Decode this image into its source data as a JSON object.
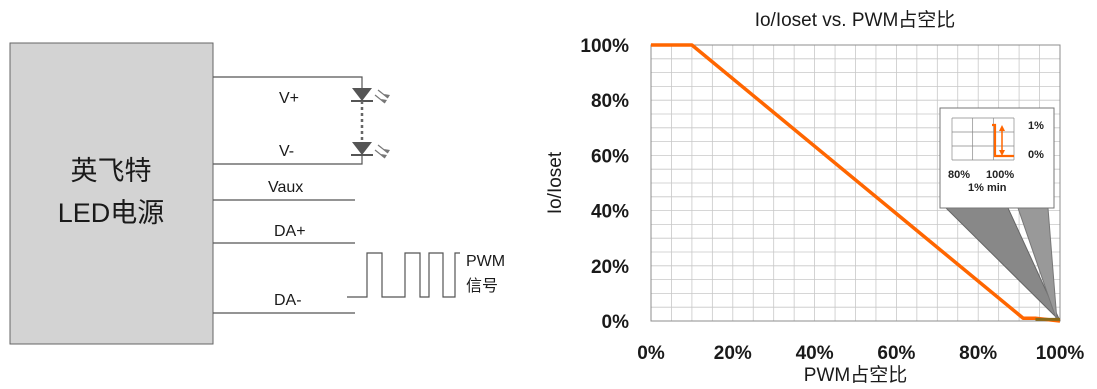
{
  "circuit": {
    "driver_label_line1": "英飞特",
    "driver_label_line2": "LED电源",
    "vplus": "V+",
    "vminus": "V-",
    "vaux": "Vaux",
    "daplus": "DA+",
    "daminus": "DA-",
    "pwm_label_line1": "PWM",
    "pwm_label_line2": "信号"
  },
  "chart_data": {
    "type": "line",
    "title": "Io/Ioset vs. PWM占空比",
    "xlabel": "PWM占空比",
    "ylabel": "Io/Ioset",
    "xlim": [
      0,
      100
    ],
    "ylim": [
      0,
      100
    ],
    "x_ticks": [
      "0%",
      "20%",
      "40%",
      "60%",
      "80%",
      "100%"
    ],
    "y_ticks": [
      "0%",
      "20%",
      "40%",
      "60%",
      "80%",
      "100%"
    ],
    "grid": true,
    "series": [
      {
        "name": "",
        "color": "#ff6600",
        "x": [
          0,
          10,
          91,
          94,
          100
        ],
        "y": [
          100,
          100,
          1,
          1,
          0
        ]
      }
    ],
    "inset": {
      "x_ticks": [
        "80%",
        "100%"
      ],
      "y_ticks": [
        "1%",
        "0%"
      ],
      "annotation": "1% min"
    }
  },
  "colors": {
    "curve": "#ff6600",
    "grid": "#c8c8c8",
    "box_fill": "#d3d3d3",
    "wire": "#555555"
  }
}
